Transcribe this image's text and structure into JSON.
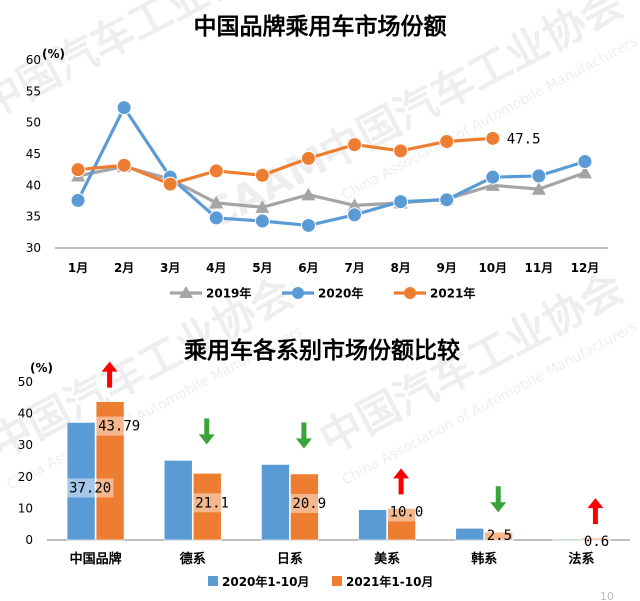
{
  "watermark": {
    "org_cn": "中国汽车工业协会",
    "org_en": "China Association of Automobile Manufacturers",
    "logo_text": "CAAM"
  },
  "corner_page_number": "10",
  "colors": {
    "series_2019": "#a5a5a5",
    "series_2020": "#5b9bd5",
    "series_2021": "#ed7d31",
    "bar_2020": "#5b9bd5",
    "bar_2021": "#ed7d31",
    "arrow_up": "#ff0000",
    "arrow_down": "#3aa33a",
    "grid": "#bfbfbf",
    "axis": "#7f7f7f"
  },
  "chart_data": [
    {
      "type": "line",
      "title": "中国品牌乘用车市场份额",
      "ylabel": "(%)",
      "categories": [
        "1月",
        "2月",
        "3月",
        "4月",
        "5月",
        "6月",
        "7月",
        "8月",
        "9月",
        "10月",
        "11月",
        "12月"
      ],
      "ylim": [
        30,
        60
      ],
      "yticks": [
        30,
        35,
        40,
        45,
        50,
        55,
        60
      ],
      "grid": false,
      "legend_position": "bottom",
      "series": [
        {
          "name": "2019年",
          "color_key": "series_2019",
          "marker": "triangle",
          "values": [
            41.5,
            43.0,
            41.0,
            37.2,
            36.5,
            38.5,
            36.8,
            37.2,
            37.8,
            40.0,
            39.4,
            42.0
          ]
        },
        {
          "name": "2020年",
          "color_key": "series_2020",
          "marker": "circle",
          "values": [
            37.6,
            52.4,
            41.3,
            34.8,
            34.3,
            33.6,
            35.3,
            37.4,
            37.7,
            41.3,
            41.5,
            43.8
          ]
        },
        {
          "name": "2021年",
          "color_key": "series_2021",
          "marker": "circle",
          "values": [
            42.5,
            43.2,
            40.2,
            42.3,
            41.6,
            44.3,
            46.5,
            45.5,
            47.0,
            47.5,
            null,
            null
          ]
        }
      ],
      "annotations": [
        {
          "series": "2021年",
          "index": 9,
          "text": "47.5"
        }
      ]
    },
    {
      "type": "bar",
      "title": "乘用车各系别市场份额比较",
      "ylabel": "(%)",
      "categories": [
        "中国品牌",
        "德系",
        "日系",
        "美系",
        "韩系",
        "法系"
      ],
      "ylim": [
        0,
        50
      ],
      "yticks": [
        0,
        10,
        20,
        30,
        40,
        50
      ],
      "grid": false,
      "legend_position": "bottom",
      "series": [
        {
          "name": "2020年1-10月",
          "color_key": "bar_2020",
          "values": [
            37.2,
            25.2,
            23.9,
            9.6,
            3.7,
            0.3
          ]
        },
        {
          "name": "2021年1-10月",
          "color_key": "bar_2021",
          "values": [
            43.79,
            21.1,
            20.9,
            10.0,
            2.5,
            0.6
          ]
        }
      ],
      "data_labels": [
        {
          "category": 0,
          "series": 0,
          "text": "37.20"
        },
        {
          "category": 0,
          "series": 1,
          "text": "43.79"
        },
        {
          "category": 1,
          "series": 1,
          "text": "21.1"
        },
        {
          "category": 2,
          "series": 1,
          "text": "20.9"
        },
        {
          "category": 3,
          "series": 1,
          "text": "10.0"
        },
        {
          "category": 4,
          "series": 1,
          "text": "2.5"
        },
        {
          "category": 5,
          "series": 1,
          "text": "0.6"
        }
      ],
      "trend_arrows": [
        "up",
        "down",
        "down",
        "up",
        "down",
        "up"
      ]
    }
  ]
}
